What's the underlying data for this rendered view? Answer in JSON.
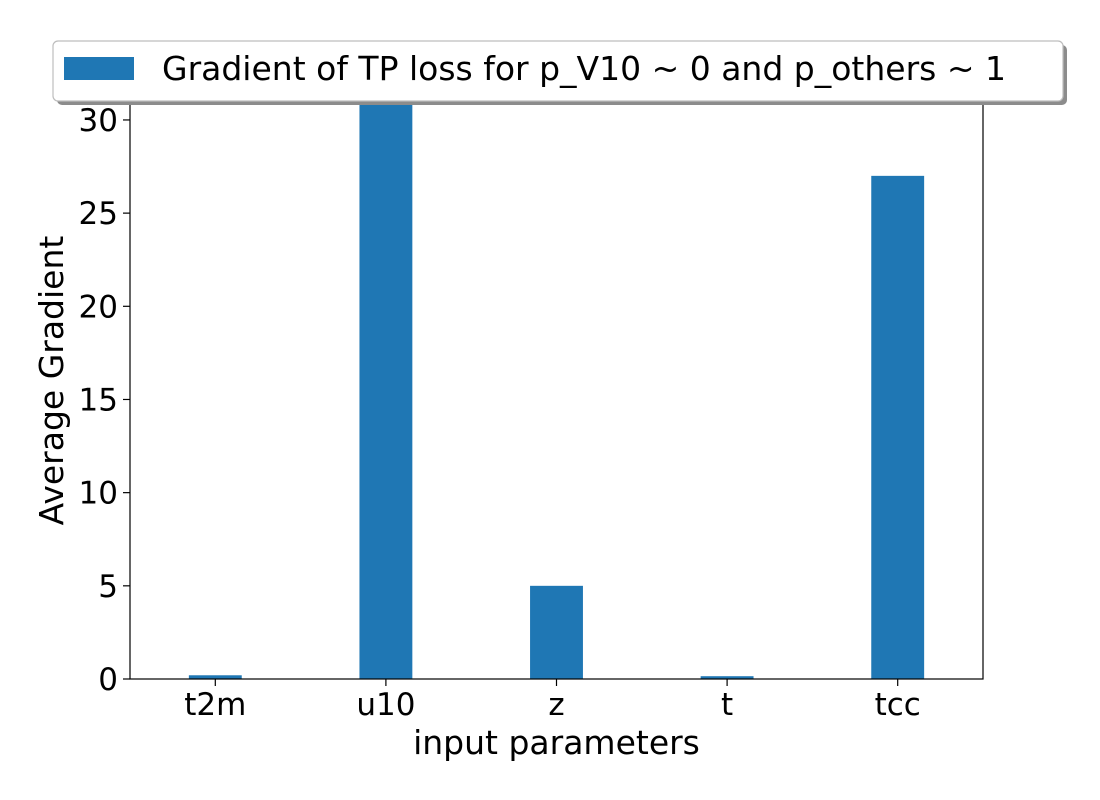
{
  "chart_data": {
    "type": "bar",
    "categories": [
      "t2m",
      "u10",
      "z",
      "t",
      "tcc"
    ],
    "series": [
      {
        "name": "Gradient of TP loss for p_V10 ~ 0 and p_others ~ 1",
        "values": [
          0.2,
          31.0,
          5.0,
          0.15,
          27.0
        ],
        "color": "#1f77b4"
      }
    ],
    "title": "",
    "xlabel": "input parameters",
    "ylabel": "Average Gradient",
    "ylim": [
      0,
      31.5
    ],
    "yticks": [
      0,
      5,
      10,
      15,
      20,
      25,
      30
    ],
    "grid": false,
    "legend_position": "top"
  }
}
